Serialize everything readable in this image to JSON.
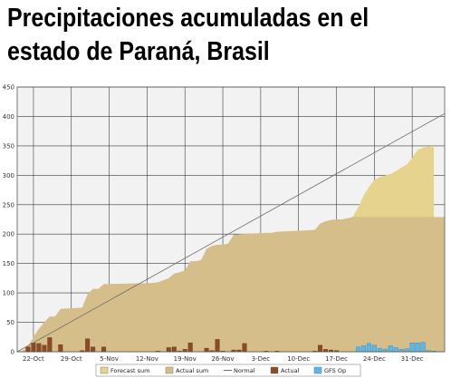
{
  "headline": {
    "line1": "Precipitaciones acumuladas en el",
    "line2": "estado de Paraná, Brasil"
  },
  "chart_data": {
    "type": "bar",
    "title": "",
    "xlabel": "",
    "ylabel": "",
    "ylim": [
      0,
      450
    ],
    "yticks": [
      0,
      50,
      100,
      150,
      200,
      250,
      300,
      350,
      400,
      450
    ],
    "x_domain": [
      "2022-10-19",
      "2023-01-06"
    ],
    "x_ticks": [
      {
        "date": "2022-10-22",
        "label": "22-Oct"
      },
      {
        "date": "2022-10-29",
        "label": "29-Oct"
      },
      {
        "date": "2022-11-05",
        "label": "5-Nov"
      },
      {
        "date": "2022-11-12",
        "label": "12-Nov"
      },
      {
        "date": "2022-11-19",
        "label": "19-Nov"
      },
      {
        "date": "2022-11-26",
        "label": "26-Nov"
      },
      {
        "date": "2022-12-03",
        "label": "3-Dec"
      },
      {
        "date": "2022-12-10",
        "label": "10-Dec"
      },
      {
        "date": "2022-12-17",
        "label": "17-Dec"
      },
      {
        "date": "2022-12-24",
        "label": "24-Dec"
      },
      {
        "date": "2022-12-31",
        "label": "31-Dec"
      }
    ],
    "grid": true,
    "legend_position": "bottom",
    "colors": {
      "forecast_sum": "#e6d38e",
      "actual_sum": "#d6be8a",
      "normal": "#6e6e6e",
      "actual": "#8b4a28",
      "gfs_op": "#5ab8ec",
      "plot_bg": "#f2f2f2",
      "grid": "#3c3c3c"
    },
    "series": [
      {
        "name": "Forecast sum",
        "kind": "area",
        "points": [
          [
            "2022-12-20",
            229
          ],
          [
            "2022-12-21",
            245
          ],
          [
            "2022-12-22",
            265
          ],
          [
            "2022-12-23",
            280
          ],
          [
            "2022-12-24",
            292
          ],
          [
            "2022-12-25",
            297
          ],
          [
            "2022-12-26",
            300
          ],
          [
            "2022-12-27",
            302
          ],
          [
            "2022-12-28",
            307
          ],
          [
            "2022-12-29",
            313
          ],
          [
            "2022-12-30",
            318
          ],
          [
            "2022-12-31",
            330
          ],
          [
            "2023-01-01",
            343
          ],
          [
            "2023-01-02",
            347
          ],
          [
            "2023-01-03",
            349
          ],
          [
            "2023-01-04",
            350
          ]
        ]
      },
      {
        "name": "Actual sum",
        "kind": "area",
        "points": [
          [
            "2022-10-19",
            0
          ],
          [
            "2022-10-20",
            2
          ],
          [
            "2022-10-21",
            10
          ],
          [
            "2022-10-22",
            25
          ],
          [
            "2022-10-23",
            39
          ],
          [
            "2022-10-24",
            50
          ],
          [
            "2022-10-25",
            60
          ],
          [
            "2022-10-26",
            60
          ],
          [
            "2022-10-27",
            73
          ],
          [
            "2022-10-31",
            75
          ],
          [
            "2022-11-01",
            98
          ],
          [
            "2022-11-02",
            107
          ],
          [
            "2022-11-03",
            107
          ],
          [
            "2022-11-04",
            115
          ],
          [
            "2022-11-13",
            117
          ],
          [
            "2022-11-14",
            118
          ],
          [
            "2022-11-16",
            125
          ],
          [
            "2022-11-17",
            133
          ],
          [
            "2022-11-18",
            135
          ],
          [
            "2022-11-19",
            138
          ],
          [
            "2022-11-20",
            154
          ],
          [
            "2022-11-21",
            154
          ],
          [
            "2022-11-22",
            156
          ],
          [
            "2022-11-23",
            175
          ],
          [
            "2022-11-24",
            180
          ],
          [
            "2022-11-25",
            182
          ],
          [
            "2022-11-26",
            182
          ],
          [
            "2022-11-27",
            184
          ],
          [
            "2022-11-28",
            199
          ],
          [
            "2022-11-29",
            200
          ],
          [
            "2022-12-04",
            202
          ],
          [
            "2022-12-05",
            202
          ],
          [
            "2022-12-06",
            204
          ],
          [
            "2022-12-13",
            207
          ],
          [
            "2022-12-14",
            218
          ],
          [
            "2022-12-15",
            222
          ],
          [
            "2022-12-16",
            224
          ],
          [
            "2022-12-17",
            225
          ],
          [
            "2022-12-18",
            225
          ],
          [
            "2022-12-19",
            227
          ],
          [
            "2022-12-20",
            229
          ],
          [
            "2023-01-06",
            229
          ]
        ]
      },
      {
        "name": "Normal",
        "kind": "line",
        "points": [
          [
            "2022-10-19",
            0
          ],
          [
            "2023-01-06",
            405
          ]
        ]
      },
      {
        "name": "Actual",
        "kind": "bar",
        "points": [
          [
            "2022-10-21",
            8
          ],
          [
            "2022-10-22",
            15
          ],
          [
            "2022-10-23",
            14
          ],
          [
            "2022-10-24",
            11
          ],
          [
            "2022-10-25",
            24
          ],
          [
            "2022-10-27",
            12
          ],
          [
            "2022-10-31",
            2
          ],
          [
            "2022-11-01",
            22
          ],
          [
            "2022-11-02",
            8
          ],
          [
            "2022-11-04",
            8
          ],
          [
            "2022-11-14",
            1
          ],
          [
            "2022-11-16",
            7
          ],
          [
            "2022-11-17",
            8
          ],
          [
            "2022-11-18",
            1
          ],
          [
            "2022-11-19",
            4
          ],
          [
            "2022-11-20",
            15
          ],
          [
            "2022-11-23",
            6
          ],
          [
            "2022-11-24",
            2
          ],
          [
            "2022-11-25",
            21
          ],
          [
            "2022-11-26",
            1
          ],
          [
            "2022-11-28",
            3
          ],
          [
            "2022-11-29",
            3
          ],
          [
            "2022-11-30",
            14
          ],
          [
            "2022-12-04",
            1
          ],
          [
            "2022-12-06",
            1
          ],
          [
            "2022-12-13",
            1
          ],
          [
            "2022-12-14",
            11
          ],
          [
            "2022-12-15",
            4
          ],
          [
            "2022-12-16",
            3
          ],
          [
            "2022-12-17",
            2
          ]
        ]
      },
      {
        "name": "GFS Op",
        "kind": "bar",
        "points": [
          [
            "2022-12-21",
            8
          ],
          [
            "2022-12-22",
            10
          ],
          [
            "2022-12-23",
            14
          ],
          [
            "2022-12-24",
            11
          ],
          [
            "2022-12-25",
            6
          ],
          [
            "2022-12-26",
            4
          ],
          [
            "2022-12-27",
            10
          ],
          [
            "2022-12-28",
            7
          ],
          [
            "2022-12-29",
            4
          ],
          [
            "2022-12-30",
            5
          ],
          [
            "2022-12-31",
            15
          ],
          [
            "2023-01-01",
            15
          ],
          [
            "2023-01-02",
            16
          ],
          [
            "2023-01-03",
            2
          ],
          [
            "2023-01-04",
            1
          ]
        ]
      }
    ]
  }
}
